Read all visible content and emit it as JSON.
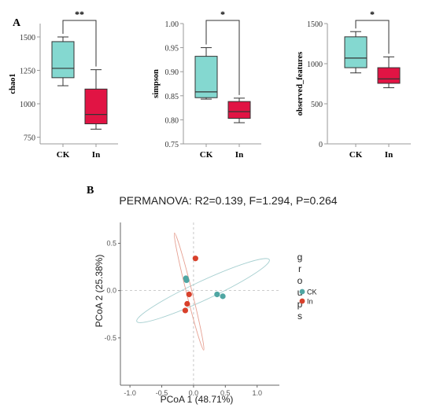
{
  "panel_labels": {
    "a": "A",
    "b": "B"
  },
  "groups": [
    {
      "name": "CK",
      "color": "#84d8d0"
    },
    {
      "name": "In",
      "color": "#e11444"
    }
  ],
  "chart_data": [
    {
      "type": "box",
      "ylabel": "chao1",
      "categories": [
        "CK",
        "In"
      ],
      "yticks": [
        750,
        1000,
        1250,
        1500
      ],
      "ylim": [
        700,
        1600
      ],
      "boxes": [
        {
          "group": "CK",
          "min": 1135,
          "q1": 1195,
          "median": 1265,
          "q3": 1465,
          "max": 1500
        },
        {
          "group": "In",
          "min": 810,
          "q1": 850,
          "median": 920,
          "q3": 1110,
          "max": 1255
        }
      ],
      "significance": "**"
    },
    {
      "type": "box",
      "ylabel": "simpson",
      "categories": [
        "CK",
        "In"
      ],
      "yticks": [
        0.75,
        0.8,
        0.85,
        0.9,
        0.95,
        1.0
      ],
      "ylim": [
        0.75,
        1.0
      ],
      "boxes": [
        {
          "group": "CK",
          "min": 0.843,
          "q1": 0.846,
          "median": 0.858,
          "q3": 0.932,
          "max": 0.95
        },
        {
          "group": "In",
          "min": 0.794,
          "q1": 0.803,
          "median": 0.817,
          "q3": 0.838,
          "max": 0.845
        }
      ],
      "significance": "*"
    },
    {
      "type": "box",
      "ylabel": "observed_features",
      "categories": [
        "CK",
        "In"
      ],
      "yticks": [
        0,
        500,
        1000,
        1500
      ],
      "ylim": [
        0,
        1500
      ],
      "boxes": [
        {
          "group": "CK",
          "min": 885,
          "q1": 950,
          "median": 1070,
          "q3": 1335,
          "max": 1400
        },
        {
          "group": "In",
          "min": 700,
          "q1": 755,
          "median": 810,
          "q3": 950,
          "max": 1085
        }
      ],
      "significance": "*"
    },
    {
      "type": "scatter",
      "title": "PERMANOVA: R2=0.139, F=1.294, P=0.264",
      "xlabel": "PCoA 1 (48.71%)",
      "ylabel": "PCoA 2 (25.38%)",
      "xticks": [
        "-1.0",
        "-0.5",
        "0.0",
        "0.5",
        "1.0"
      ],
      "xtick_values": [
        -1.0,
        -0.5,
        0.0,
        0.5,
        1.0
      ],
      "yticks": [
        "0.5",
        "0.0",
        "-0.5"
      ],
      "ytick_values": [
        0.5,
        0.0,
        -0.5
      ],
      "xlim": [
        -1.15,
        1.35
      ],
      "ylim": [
        -1.0,
        0.72
      ],
      "legend_title_letters": [
        "g",
        "r",
        "o",
        "u",
        "p",
        "s"
      ],
      "legend_position": "right",
      "series": [
        {
          "name": "CK",
          "color": "#4fa6a3",
          "points": [
            [
              -0.12,
              0.13
            ],
            [
              -0.11,
              0.11
            ],
            [
              0.37,
              -0.04
            ],
            [
              0.46,
              -0.06
            ]
          ]
        },
        {
          "name": "In",
          "color": "#d8402b",
          "points": [
            [
              0.03,
              0.34
            ],
            [
              -0.07,
              -0.04
            ],
            [
              -0.1,
              -0.14
            ],
            [
              -0.13,
              -0.21
            ]
          ]
        }
      ],
      "ellipses": [
        {
          "group": "CK",
          "color": "#a6cfd0",
          "cx": 0.15,
          "cy": 0.0,
          "rx": 1.15,
          "ry": 0.1,
          "angle_deg": -25
        },
        {
          "group": "In",
          "color": "#e6a092",
          "cx": -0.07,
          "cy": -0.01,
          "rx": 0.95,
          "ry": 0.03,
          "angle_deg": 76
        }
      ]
    }
  ]
}
